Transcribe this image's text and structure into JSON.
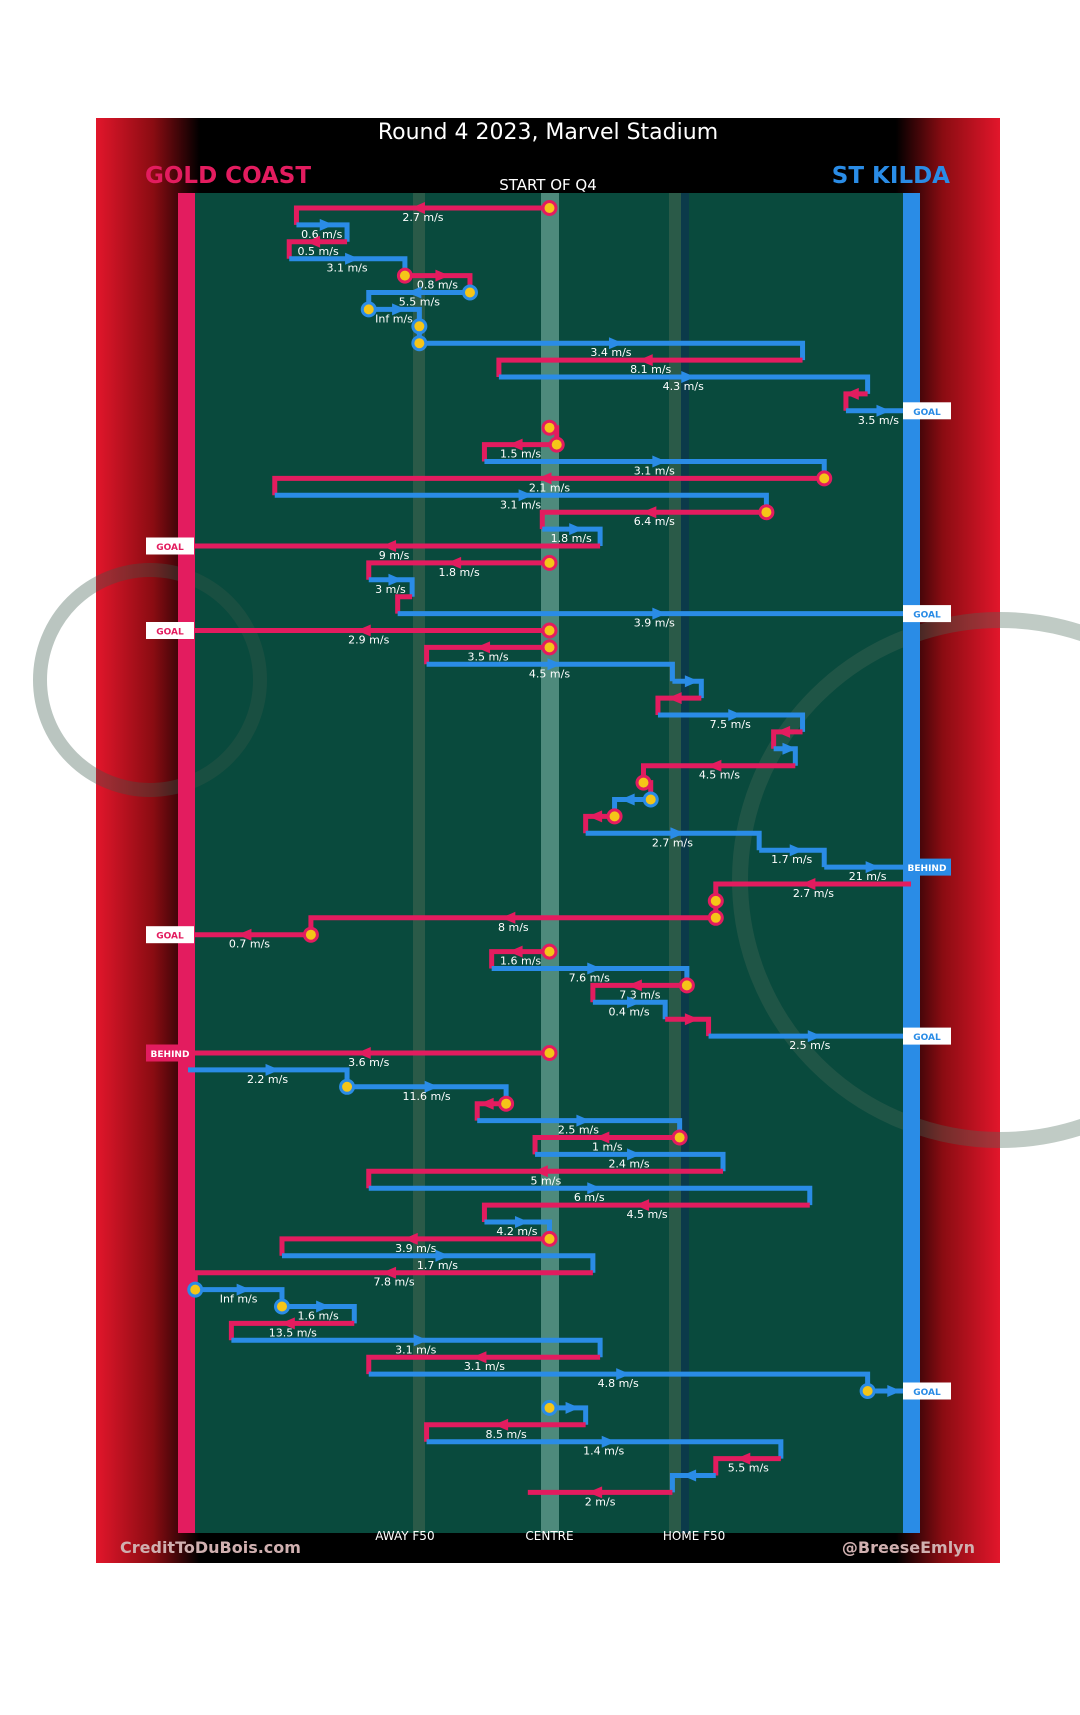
{
  "title": "Round 4 2023, Marvel Stadium",
  "teams": {
    "home": {
      "name": "GOLD COAST",
      "color": "#e31c5f"
    },
    "away": {
      "name": "ST KILDA",
      "color": "#2a8ce6"
    }
  },
  "period_label": "START OF Q4",
  "credits": {
    "left": "CreditToDuBois.com",
    "right": "@BreeseEmlyn"
  },
  "colors": {
    "pitch": "#094a3d",
    "frame": "#000000",
    "ball": "#f5c518",
    "side_red": "#e2162b"
  },
  "chart_data": {
    "type": "line",
    "description_axis": "x = position along ground, 0 = Gold Coast goal line, 100 = St Kilda goal line; y = chain sequence step",
    "x_ticks": [
      {
        "x": 30,
        "label": "AWAY F50"
      },
      {
        "x": 50,
        "label": "CENTRE"
      },
      {
        "x": 70,
        "label": "HOME F50"
      }
    ],
    "segments": [
      {
        "team": "home",
        "x1": 50,
        "x2": 15,
        "y": 1,
        "drop": 1,
        "label": "2.7 m/s",
        "ball": 1
      },
      {
        "team": "blue",
        "x1": 15,
        "x2": 22,
        "y": 2,
        "drop": 1,
        "label": "0.6 m/s"
      },
      {
        "team": "home",
        "x1": 22,
        "x2": 14,
        "y": 3,
        "drop": 1,
        "label": "0.5 m/s"
      },
      {
        "team": "blue",
        "x1": 14,
        "x2": 30,
        "y": 4,
        "drop": 1,
        "label": "3.1 m/s"
      },
      {
        "team": "home",
        "x1": 30,
        "x2": 39,
        "y": 5,
        "drop": 1,
        "label": "0.8 m/s",
        "ball": 1
      },
      {
        "team": "blue",
        "x1": 39,
        "x2": 25,
        "y": 6,
        "drop": 1,
        "label": "5.5 m/s",
        "ball": 1
      },
      {
        "team": "blue",
        "x1": 25,
        "x2": 32,
        "y": 7,
        "drop": 1,
        "label": "Inf m/s",
        "ball": 1
      },
      {
        "team": "blue",
        "x1": 32,
        "x2": 32,
        "y": 8,
        "drop": 1,
        "label": "",
        "ball": 1
      },
      {
        "team": "blue",
        "x1": 32,
        "x2": 85,
        "y": 9,
        "drop": 1,
        "label": "3.4 m/s",
        "ball": 1
      },
      {
        "team": "home",
        "x1": 85,
        "x2": 43,
        "y": 10,
        "drop": 1,
        "label": "8.1 m/s"
      },
      {
        "team": "blue",
        "x1": 43,
        "x2": 94,
        "y": 11,
        "drop": 1,
        "label": "4.3 m/s"
      },
      {
        "team": "home",
        "x1": 94,
        "x2": 91,
        "y": 12,
        "drop": 1,
        "label": ""
      },
      {
        "team": "blue",
        "x1": 91,
        "x2": 100,
        "y": 13,
        "drop": 0,
        "label": "3.5 m/s",
        "end": "GOAL"
      },
      {
        "team": "home",
        "x1": 50,
        "x2": 51,
        "y": 14,
        "drop": 1,
        "label": "",
        "ball": 1
      },
      {
        "team": "home",
        "x1": 51,
        "x2": 41,
        "y": 15,
        "drop": 1,
        "label": "1.5 m/s",
        "ball": 1
      },
      {
        "team": "blue",
        "x1": 41,
        "x2": 88,
        "y": 16,
        "drop": 1,
        "label": "3.1 m/s"
      },
      {
        "team": "home",
        "x1": 88,
        "x2": 12,
        "y": 17,
        "drop": 1,
        "label": "2.1 m/s",
        "ball": 1
      },
      {
        "team": "blue",
        "x1": 12,
        "x2": 80,
        "y": 18,
        "drop": 1,
        "label": "3.1 m/s"
      },
      {
        "team": "home",
        "x1": 80,
        "x2": 49,
        "y": 19,
        "drop": 1,
        "label": "6.4 m/s",
        "ball": 1
      },
      {
        "team": "blue",
        "x1": 49,
        "x2": 57,
        "y": 20,
        "drop": 1,
        "label": "1.8 m/s"
      },
      {
        "team": "home",
        "x1": 57,
        "x2": 0,
        "y": 21,
        "drop": 0,
        "label": "9 m/s",
        "end": "GOAL"
      },
      {
        "team": "home",
        "x1": 50,
        "x2": 25,
        "y": 22,
        "drop": 1,
        "label": "1.8 m/s",
        "ball": 1
      },
      {
        "team": "blue",
        "x1": 25,
        "x2": 31,
        "y": 23,
        "drop": 1,
        "label": "3 m/s"
      },
      {
        "team": "home",
        "x1": 31,
        "x2": 29,
        "y": 24,
        "drop": 1,
        "label": ""
      },
      {
        "team": "blue",
        "x1": 29,
        "x2": 100,
        "y": 25,
        "drop": 0,
        "label": "3.9 m/s",
        "end": "GOAL"
      },
      {
        "team": "home",
        "x1": 50,
        "x2": 0,
        "y": 26,
        "drop": 0,
        "label": "2.9 m/s",
        "end": "GOAL",
        "ball": 1
      },
      {
        "team": "home",
        "x1": 50,
        "x2": 33,
        "y": 27,
        "drop": 1,
        "label": "3.5 m/s",
        "ball": 1
      },
      {
        "team": "blue",
        "x1": 33,
        "x2": 67,
        "y": 28,
        "drop": 1,
        "label": "4.5 m/s"
      },
      {
        "team": "blue",
        "x1": 67,
        "x2": 71,
        "y": 29,
        "drop": 1,
        "label": ""
      },
      {
        "team": "home",
        "x1": 71,
        "x2": 65,
        "y": 30,
        "drop": 1,
        "label": ""
      },
      {
        "team": "blue",
        "x1": 65,
        "x2": 85,
        "y": 31,
        "drop": 1,
        "label": "7.5 m/s"
      },
      {
        "team": "home",
        "x1": 85,
        "x2": 81,
        "y": 32,
        "drop": 1,
        "label": ""
      },
      {
        "team": "blue",
        "x1": 81,
        "x2": 84,
        "y": 33,
        "drop": 1,
        "label": ""
      },
      {
        "team": "home",
        "x1": 84,
        "x2": 63,
        "y": 34,
        "drop": 1,
        "label": "4.5 m/s"
      },
      {
        "team": "home",
        "x1": 63,
        "x2": 64,
        "y": 35,
        "drop": 1,
        "label": "",
        "ball": 1
      },
      {
        "team": "blue",
        "x1": 64,
        "x2": 59,
        "y": 36,
        "drop": 1,
        "label": "",
        "ball": 1
      },
      {
        "team": "home",
        "x1": 59,
        "x2": 55,
        "y": 37,
        "drop": 1,
        "label": "",
        "ball": 1
      },
      {
        "team": "blue",
        "x1": 55,
        "x2": 79,
        "y": 38,
        "drop": 1,
        "label": "2.7 m/s"
      },
      {
        "team": "blue",
        "x1": 79,
        "x2": 88,
        "y": 39,
        "drop": 1,
        "label": "1.7 m/s"
      },
      {
        "team": "blue",
        "x1": 88,
        "x2": 100,
        "y": 40,
        "drop": 0,
        "label": "21 m/s",
        "end": "BEHIND"
      },
      {
        "team": "home",
        "x1": 100,
        "x2": 73,
        "y": 41,
        "drop": 1,
        "label": "2.7 m/s"
      },
      {
        "team": "home",
        "x1": 73,
        "x2": 73,
        "y": 42,
        "drop": 1,
        "label": "",
        "ball": 1
      },
      {
        "team": "home",
        "x1": 73,
        "x2": 17,
        "y": 43,
        "drop": 1,
        "label": "8 m/s",
        "ball": 1
      },
      {
        "team": "home",
        "x1": 17,
        "x2": 0,
        "y": 44,
        "drop": 0,
        "label": "0.7 m/s",
        "end": "GOAL",
        "ball": 1
      },
      {
        "team": "home",
        "x1": 50,
        "x2": 42,
        "y": 45,
        "drop": 1,
        "label": "1.6 m/s",
        "ball": 1
      },
      {
        "team": "blue",
        "x1": 42,
        "x2": 69,
        "y": 46,
        "drop": 1,
        "label": "7.6 m/s"
      },
      {
        "team": "home",
        "x1": 69,
        "x2": 56,
        "y": 47,
        "drop": 1,
        "label": "7.3 m/s",
        "ball": 1
      },
      {
        "team": "blue",
        "x1": 56,
        "x2": 66,
        "y": 48,
        "drop": 1,
        "label": "0.4 m/s"
      },
      {
        "team": "home",
        "x1": 66,
        "x2": 72,
        "y": 49,
        "drop": 1,
        "label": ""
      },
      {
        "team": "blue",
        "x1": 72,
        "x2": 100,
        "y": 50,
        "drop": 0,
        "label": "2.5 m/s",
        "end": "GOAL"
      },
      {
        "team": "home",
        "x1": 50,
        "x2": 0,
        "y": 51,
        "drop": 0,
        "label": "3.6 m/s",
        "end": "BEHIND",
        "ball": 1
      },
      {
        "team": "blue",
        "x1": 0,
        "x2": 22,
        "y": 52,
        "drop": 1,
        "label": "2.2 m/s"
      },
      {
        "team": "blue",
        "x1": 22,
        "x2": 44,
        "y": 53,
        "drop": 1,
        "label": "11.6 m/s",
        "ball": 1
      },
      {
        "team": "home",
        "x1": 44,
        "x2": 40,
        "y": 54,
        "drop": 1,
        "label": "",
        "ball": 1
      },
      {
        "team": "blue",
        "x1": 40,
        "x2": 68,
        "y": 55,
        "drop": 1,
        "label": "2.5 m/s"
      },
      {
        "team": "home",
        "x1": 68,
        "x2": 48,
        "y": 56,
        "drop": 1,
        "label": "1 m/s",
        "ball": 1
      },
      {
        "team": "blue",
        "x1": 48,
        "x2": 74,
        "y": 57,
        "drop": 1,
        "label": "2.4 m/s"
      },
      {
        "team": "home",
        "x1": 74,
        "x2": 25,
        "y": 58,
        "drop": 1,
        "label": "5 m/s"
      },
      {
        "team": "blue",
        "x1": 25,
        "x2": 86,
        "y": 59,
        "drop": 1,
        "label": "6 m/s"
      },
      {
        "team": "home",
        "x1": 86,
        "x2": 41,
        "y": 60,
        "drop": 1,
        "label": "4.5 m/s"
      },
      {
        "team": "blue",
        "x1": 41,
        "x2": 50,
        "y": 61,
        "drop": 1,
        "label": "4.2 m/s"
      },
      {
        "team": "home",
        "x1": 50,
        "x2": 13,
        "y": 62,
        "drop": 1,
        "label": "3.9 m/s",
        "ball": 1
      },
      {
        "team": "blue",
        "x1": 13,
        "x2": 56,
        "y": 63,
        "drop": 1,
        "label": "1.7 m/s"
      },
      {
        "team": "home",
        "x1": 56,
        "x2": 1,
        "y": 64,
        "drop": 1,
        "label": "7.8 m/s"
      },
      {
        "team": "blue",
        "x1": 1,
        "x2": 13,
        "y": 65,
        "drop": 1,
        "label": "Inf m/s",
        "ball": 1
      },
      {
        "team": "blue",
        "x1": 13,
        "x2": 23,
        "y": 66,
        "drop": 1,
        "label": "1.6 m/s",
        "ball": 1
      },
      {
        "team": "home",
        "x1": 23,
        "x2": 6,
        "y": 67,
        "drop": 1,
        "label": "13.5 m/s"
      },
      {
        "team": "blue",
        "x1": 6,
        "x2": 57,
        "y": 68,
        "drop": 1,
        "label": "3.1 m/s"
      },
      {
        "team": "home",
        "x1": 57,
        "x2": 25,
        "y": 69,
        "drop": 1,
        "label": "3.1 m/s"
      },
      {
        "team": "blue",
        "x1": 25,
        "x2": 94,
        "y": 70,
        "drop": 1,
        "label": "4.8 m/s"
      },
      {
        "team": "blue",
        "x1": 94,
        "x2": 100,
        "y": 71,
        "drop": 0,
        "label": "",
        "end": "GOAL",
        "ball": 1
      },
      {
        "team": "blue",
        "x1": 50,
        "x2": 55,
        "y": 72,
        "drop": 1,
        "label": "",
        "ball": 1
      },
      {
        "team": "home",
        "x1": 55,
        "x2": 33,
        "y": 73,
        "drop": 1,
        "label": "8.5 m/s"
      },
      {
        "team": "blue",
        "x1": 33,
        "x2": 82,
        "y": 74,
        "drop": 1,
        "label": "1.4 m/s"
      },
      {
        "team": "home",
        "x1": 82,
        "x2": 73,
        "y": 75,
        "drop": 1,
        "label": "5.5 m/s"
      },
      {
        "team": "blue",
        "x1": 73,
        "x2": 67,
        "y": 76,
        "drop": 1,
        "label": ""
      },
      {
        "team": "home",
        "x1": 67,
        "x2": 47,
        "y": 77,
        "drop": 0,
        "label": "2 m/s"
      }
    ]
  }
}
